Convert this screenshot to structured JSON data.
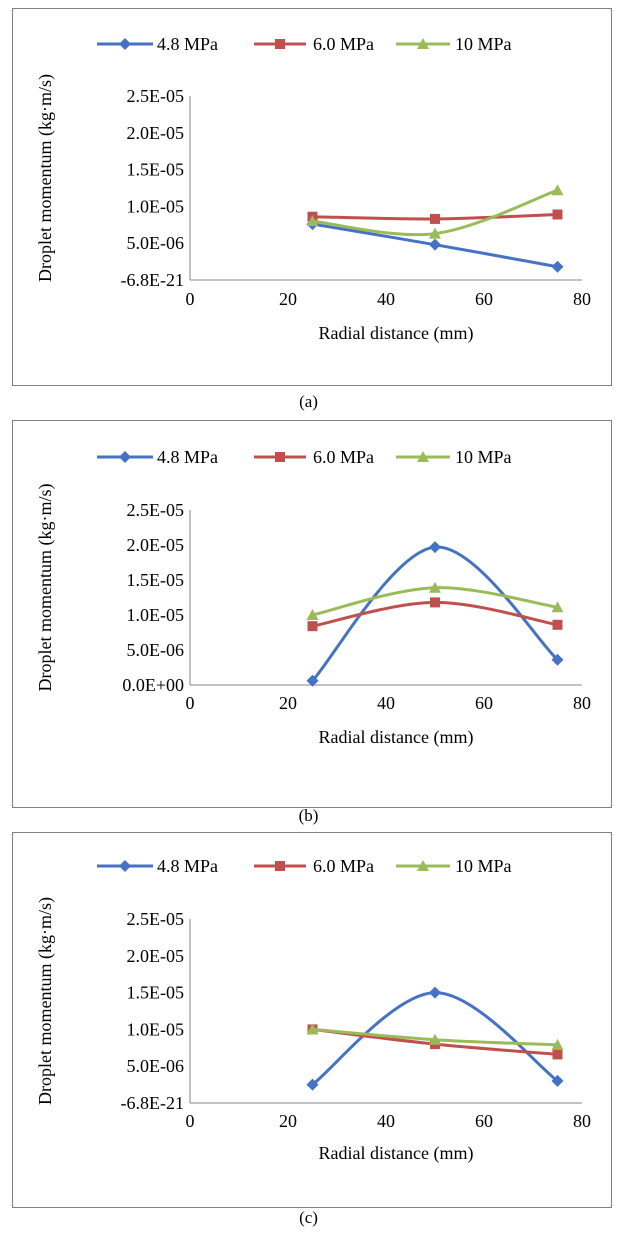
{
  "chart_data": [
    {
      "type": "line",
      "caption": "(a)",
      "xlabel": "Radial distance (mm)",
      "ylabel": "Droplet momentum (kg·m/s)",
      "x_ticks": [
        "0",
        "20",
        "40",
        "60",
        "80"
      ],
      "y_ticks": [
        "-6.8E-21",
        "5.0E-06",
        "1.0E-05",
        "1.5E-05",
        "2.0E-05",
        "2.5E-05"
      ],
      "xlim": [
        0,
        80
      ],
      "ylim": [
        0,
        2.5e-05
      ],
      "legend_position": "top",
      "x": [
        25,
        50,
        75
      ],
      "series": [
        {
          "name": "4.8 MPa",
          "color": "#4472C4",
          "marker": "diamond",
          "values": [
            7.6e-06,
            4.8e-06,
            1.8e-06
          ]
        },
        {
          "name": "6.0 MPa",
          "color": "#C0504D",
          "marker": "square",
          "values": [
            8.6e-06,
            8.3e-06,
            8.9e-06
          ]
        },
        {
          "name": "10 MPa",
          "color": "#9BBB59",
          "marker": "triangle",
          "values": [
            8e-06,
            6.3e-06,
            1.22e-05
          ]
        }
      ]
    },
    {
      "type": "line",
      "caption": "(b)",
      "xlabel": "Radial distance (mm)",
      "ylabel": "Droplet momentum (kg·m/s)",
      "x_ticks": [
        "0",
        "20",
        "40",
        "60",
        "80"
      ],
      "y_ticks": [
        "0.0E+00",
        "5.0E-06",
        "1.0E-05",
        "1.5E-05",
        "2.0E-05",
        "2.5E-05"
      ],
      "xlim": [
        0,
        80
      ],
      "ylim": [
        0,
        2.5e-05
      ],
      "legend_position": "top",
      "x": [
        25,
        50,
        75
      ],
      "series": [
        {
          "name": "4.8 MPa",
          "color": "#4472C4",
          "marker": "diamond",
          "values": [
            6e-07,
            1.97e-05,
            3.6e-06
          ]
        },
        {
          "name": "6.0 MPa",
          "color": "#C0504D",
          "marker": "square",
          "values": [
            8.4e-06,
            1.18e-05,
            8.6e-06
          ]
        },
        {
          "name": "10 MPa",
          "color": "#9BBB59",
          "marker": "triangle",
          "values": [
            1e-05,
            1.39e-05,
            1.11e-05
          ]
        }
      ]
    },
    {
      "type": "line",
      "caption": "(c)",
      "xlabel": "Radial distance (mm)",
      "ylabel": "Droplet momentum (kg·m/s)",
      "x_ticks": [
        "0",
        "20",
        "40",
        "60",
        "80"
      ],
      "y_ticks": [
        "-6.8E-21",
        "5.0E-06",
        "1.0E-05",
        "1.5E-05",
        "2.0E-05",
        "2.5E-05"
      ],
      "xlim": [
        0,
        80
      ],
      "ylim": [
        0,
        2.5e-05
      ],
      "legend_position": "top",
      "x": [
        25,
        50,
        75
      ],
      "series": [
        {
          "name": "4.8 MPa",
          "color": "#4472C4",
          "marker": "diamond",
          "values": [
            2.5e-06,
            1.5e-05,
            3e-06
          ]
        },
        {
          "name": "6.0 MPa",
          "color": "#C0504D",
          "marker": "square",
          "values": [
            1e-05,
            8e-06,
            6.6e-06
          ]
        },
        {
          "name": "10 MPa",
          "color": "#9BBB59",
          "marker": "triangle",
          "values": [
            1e-05,
            8.6e-06,
            7.9e-06
          ]
        }
      ]
    }
  ]
}
